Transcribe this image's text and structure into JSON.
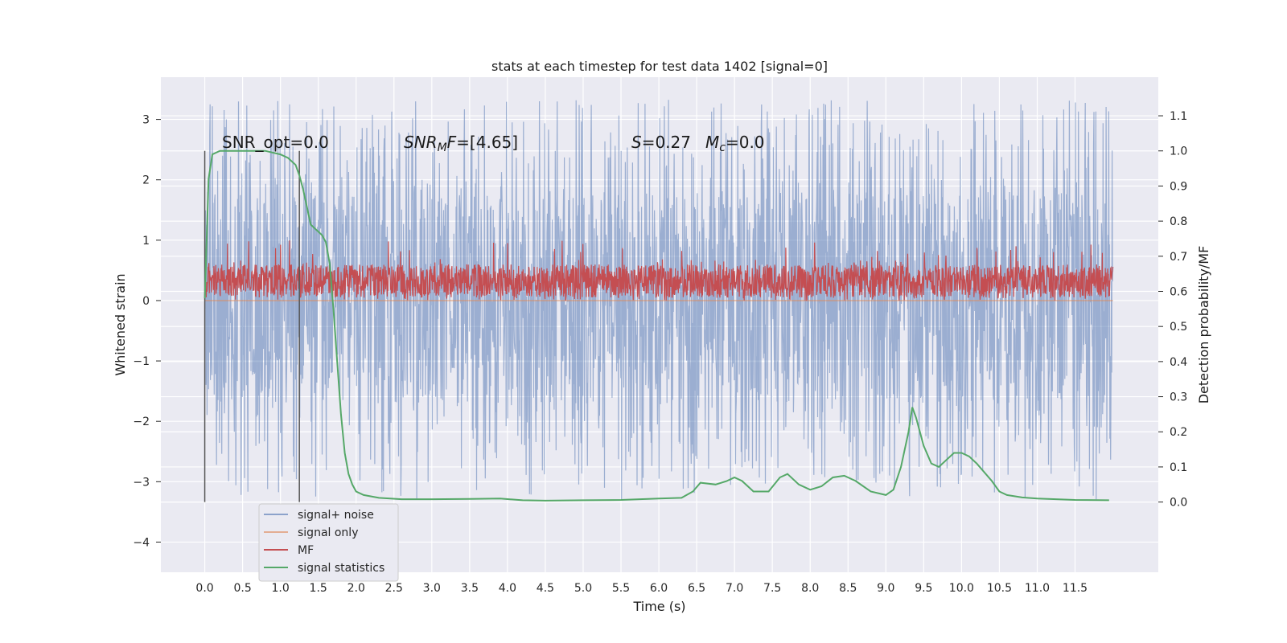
{
  "chart_data": {
    "type": "line",
    "title": "stats at each timestep for test data 1402 [signal=0]",
    "xlabel": "Time (s)",
    "ylabel": "Whitened strain",
    "y2label": "Detection probability/MF",
    "xlim": [
      -0.58,
      12.6
    ],
    "ylim": [
      -4.5,
      3.7
    ],
    "y2lim": [
      -0.2,
      1.21
    ],
    "x_ticks": [
      0.0,
      0.5,
      1.0,
      1.5,
      2.0,
      2.5,
      3.0,
      3.5,
      4.0,
      4.5,
      5.0,
      5.5,
      6.0,
      6.5,
      7.0,
      7.5,
      8.0,
      8.5,
      9.0,
      9.5,
      10.0,
      10.5,
      11.0,
      11.5
    ],
    "x_tick_labels": [
      "0.0",
      "0.5",
      "1.0",
      "1.5",
      "2.0",
      "2.5",
      "3.0",
      "3.5",
      "4.0",
      "4.5",
      "5.0",
      "5.5",
      "6.0",
      "6.5",
      "7.0",
      "7.5",
      "8.0",
      "8.5",
      "9.0",
      "9.5",
      "10.0",
      "10.5",
      "11.0",
      "11.5"
    ],
    "y_ticks": [
      3,
      2,
      1,
      0,
      -1,
      -2,
      -3,
      -4
    ],
    "y_tick_labels": [
      "3",
      "2",
      "1",
      "0",
      "−1",
      "−2",
      "−3",
      "−4"
    ],
    "y2_ticks": [
      1.1,
      1.0,
      0.9,
      0.8,
      0.7,
      0.6,
      0.5,
      0.4,
      0.3,
      0.2,
      0.1,
      0.0
    ],
    "y2_tick_labels": [
      "1.1",
      "1.0",
      "0.9",
      "0.8",
      "0.7",
      "0.6",
      "0.5",
      "0.4",
      "0.3",
      "0.2",
      "0.1",
      "0.0"
    ],
    "grid": true,
    "legend_position": "lower-left",
    "annotations": {
      "snr_opt": "SNR_opt=0.0",
      "snr_mf_label": "SNR",
      "snr_mf_sub": "M",
      "snr_mf_f": "F",
      "snr_mf_value": "=[4.65]",
      "s_label": "S",
      "s_value": "=0.27",
      "mc_label": "M",
      "mc_sub": "c",
      "mc_value": "=0.0"
    },
    "vertical_lines": [
      0.0,
      1.25
    ],
    "series": [
      {
        "name": "signal+ noise",
        "color": "#4c72b0",
        "axis": "left",
        "kind": "noise",
        "t_range": [
          0.0,
          12.0
        ],
        "envelope": [
          -3.3,
          3.35
        ],
        "band": [
          -1.7,
          1.8
        ]
      },
      {
        "name": "signal only",
        "color": "#dd8452",
        "axis": "left",
        "x": [
          0.0,
          12.0
        ],
        "y": [
          0.0,
          0.0
        ]
      },
      {
        "name": "MF",
        "color": "#c44e52",
        "axis": "left",
        "kind": "noise",
        "t_range": [
          0.0,
          12.0
        ],
        "envelope": [
          0.0,
          1.0
        ],
        "band": [
          0.05,
          0.6
        ]
      },
      {
        "name": "signal statistics",
        "color": "#55a868",
        "axis": "right",
        "x": [
          0.0,
          0.05,
          0.1,
          0.15,
          0.2,
          0.3,
          0.5,
          0.8,
          1.0,
          1.1,
          1.2,
          1.25,
          1.3,
          1.35,
          1.4,
          1.5,
          1.55,
          1.6,
          1.65,
          1.7,
          1.75,
          1.8,
          1.85,
          1.9,
          1.95,
          2.0,
          2.1,
          2.3,
          2.6,
          3.0,
          3.5,
          3.9,
          4.2,
          4.5,
          5.0,
          5.5,
          6.0,
          6.3,
          6.45,
          6.55,
          6.75,
          6.9,
          7.0,
          7.1,
          7.25,
          7.45,
          7.6,
          7.7,
          7.85,
          8.0,
          8.15,
          8.3,
          8.45,
          8.6,
          8.8,
          9.0,
          9.1,
          9.2,
          9.3,
          9.35,
          9.4,
          9.5,
          9.6,
          9.7,
          9.8,
          9.9,
          10.0,
          10.1,
          10.2,
          10.4,
          10.5,
          10.6,
          10.8,
          11.0,
          11.5,
          11.95
        ],
        "y": [
          0.58,
          0.92,
          0.99,
          0.995,
          1.0,
          1.0,
          1.0,
          1.0,
          0.99,
          0.98,
          0.96,
          0.93,
          0.89,
          0.84,
          0.79,
          0.77,
          0.76,
          0.74,
          0.68,
          0.55,
          0.4,
          0.25,
          0.14,
          0.08,
          0.05,
          0.03,
          0.02,
          0.012,
          0.008,
          0.008,
          0.009,
          0.01,
          0.005,
          0.004,
          0.005,
          0.006,
          0.01,
          0.012,
          0.03,
          0.055,
          0.05,
          0.06,
          0.07,
          0.06,
          0.03,
          0.03,
          0.07,
          0.08,
          0.05,
          0.035,
          0.045,
          0.07,
          0.075,
          0.06,
          0.03,
          0.02,
          0.035,
          0.1,
          0.2,
          0.27,
          0.24,
          0.16,
          0.11,
          0.1,
          0.12,
          0.14,
          0.14,
          0.13,
          0.11,
          0.06,
          0.03,
          0.02,
          0.013,
          0.01,
          0.006,
          0.005
        ]
      }
    ]
  }
}
